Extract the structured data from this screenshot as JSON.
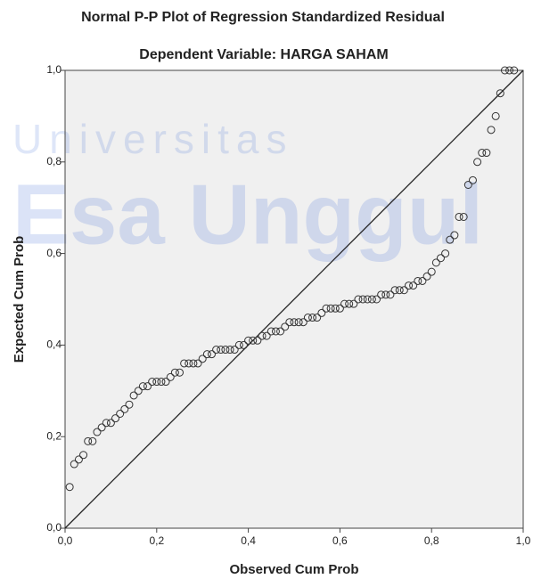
{
  "chart_data": {
    "type": "scatter",
    "title": "Normal P-P Plot of Regression Standardized Residual",
    "subtitle": "Dependent Variable: HARGA SAHAM",
    "watermark": [
      "Universitas",
      "Esa Unggul"
    ],
    "xlabel": "Observed Cum Prob",
    "ylabel": "Expected Cum Prob",
    "xlim": [
      0,
      1
    ],
    "ylim": [
      0,
      1
    ],
    "xticks": [
      {
        "value": 0,
        "label": "0,0"
      },
      {
        "value": 0.2,
        "label": "0,2"
      },
      {
        "value": 0.4,
        "label": "0,4"
      },
      {
        "value": 0.6,
        "label": "0,6"
      },
      {
        "value": 0.8,
        "label": "0,8"
      },
      {
        "value": 1,
        "label": "1,0"
      }
    ],
    "yticks": [
      {
        "value": 0,
        "label": "0,0"
      },
      {
        "value": 0.2,
        "label": "0,2"
      },
      {
        "value": 0.4,
        "label": "0,4"
      },
      {
        "value": 0.6,
        "label": "0,6"
      },
      {
        "value": 0.8,
        "label": "0,8"
      },
      {
        "value": 1,
        "label": "1,0"
      }
    ],
    "reference_line": true,
    "color": "#333333",
    "x": [
      0.01,
      0.02,
      0.03,
      0.04,
      0.05,
      0.06,
      0.07,
      0.08,
      0.09,
      0.1,
      0.11,
      0.12,
      0.13,
      0.14,
      0.15,
      0.16,
      0.17,
      0.18,
      0.19,
      0.2,
      0.21,
      0.22,
      0.23,
      0.24,
      0.25,
      0.26,
      0.27,
      0.28,
      0.29,
      0.3,
      0.31,
      0.32,
      0.33,
      0.34,
      0.35,
      0.36,
      0.37,
      0.38,
      0.39,
      0.4,
      0.41,
      0.42,
      0.43,
      0.44,
      0.45,
      0.46,
      0.47,
      0.48,
      0.49,
      0.5,
      0.51,
      0.52,
      0.53,
      0.54,
      0.55,
      0.56,
      0.57,
      0.58,
      0.59,
      0.6,
      0.61,
      0.62,
      0.63,
      0.64,
      0.65,
      0.66,
      0.67,
      0.68,
      0.69,
      0.7,
      0.71,
      0.72,
      0.73,
      0.74,
      0.75,
      0.76,
      0.77,
      0.78,
      0.79,
      0.8,
      0.81,
      0.82,
      0.83,
      0.84,
      0.85,
      0.86,
      0.87,
      0.88,
      0.89,
      0.9,
      0.91,
      0.92,
      0.93,
      0.94,
      0.95,
      0.96,
      0.97,
      0.98
    ],
    "y": [
      0.09,
      0.14,
      0.15,
      0.16,
      0.19,
      0.19,
      0.21,
      0.22,
      0.23,
      0.23,
      0.24,
      0.25,
      0.26,
      0.27,
      0.29,
      0.3,
      0.31,
      0.31,
      0.32,
      0.32,
      0.32,
      0.32,
      0.33,
      0.34,
      0.34,
      0.36,
      0.36,
      0.36,
      0.36,
      0.37,
      0.38,
      0.38,
      0.39,
      0.39,
      0.39,
      0.39,
      0.39,
      0.4,
      0.4,
      0.41,
      0.41,
      0.41,
      0.42,
      0.42,
      0.43,
      0.43,
      0.43,
      0.44,
      0.45,
      0.45,
      0.45,
      0.45,
      0.46,
      0.46,
      0.46,
      0.47,
      0.48,
      0.48,
      0.48,
      0.48,
      0.49,
      0.49,
      0.49,
      0.5,
      0.5,
      0.5,
      0.5,
      0.5,
      0.51,
      0.51,
      0.51,
      0.52,
      0.52,
      0.52,
      0.53,
      0.53,
      0.54,
      0.54,
      0.55,
      0.56,
      0.58,
      0.59,
      0.6,
      0.63,
      0.64,
      0.68,
      0.68,
      0.75,
      0.76,
      0.8,
      0.82,
      0.82,
      0.87,
      0.9,
      0.95,
      1.0,
      1.0,
      1.0
    ]
  }
}
